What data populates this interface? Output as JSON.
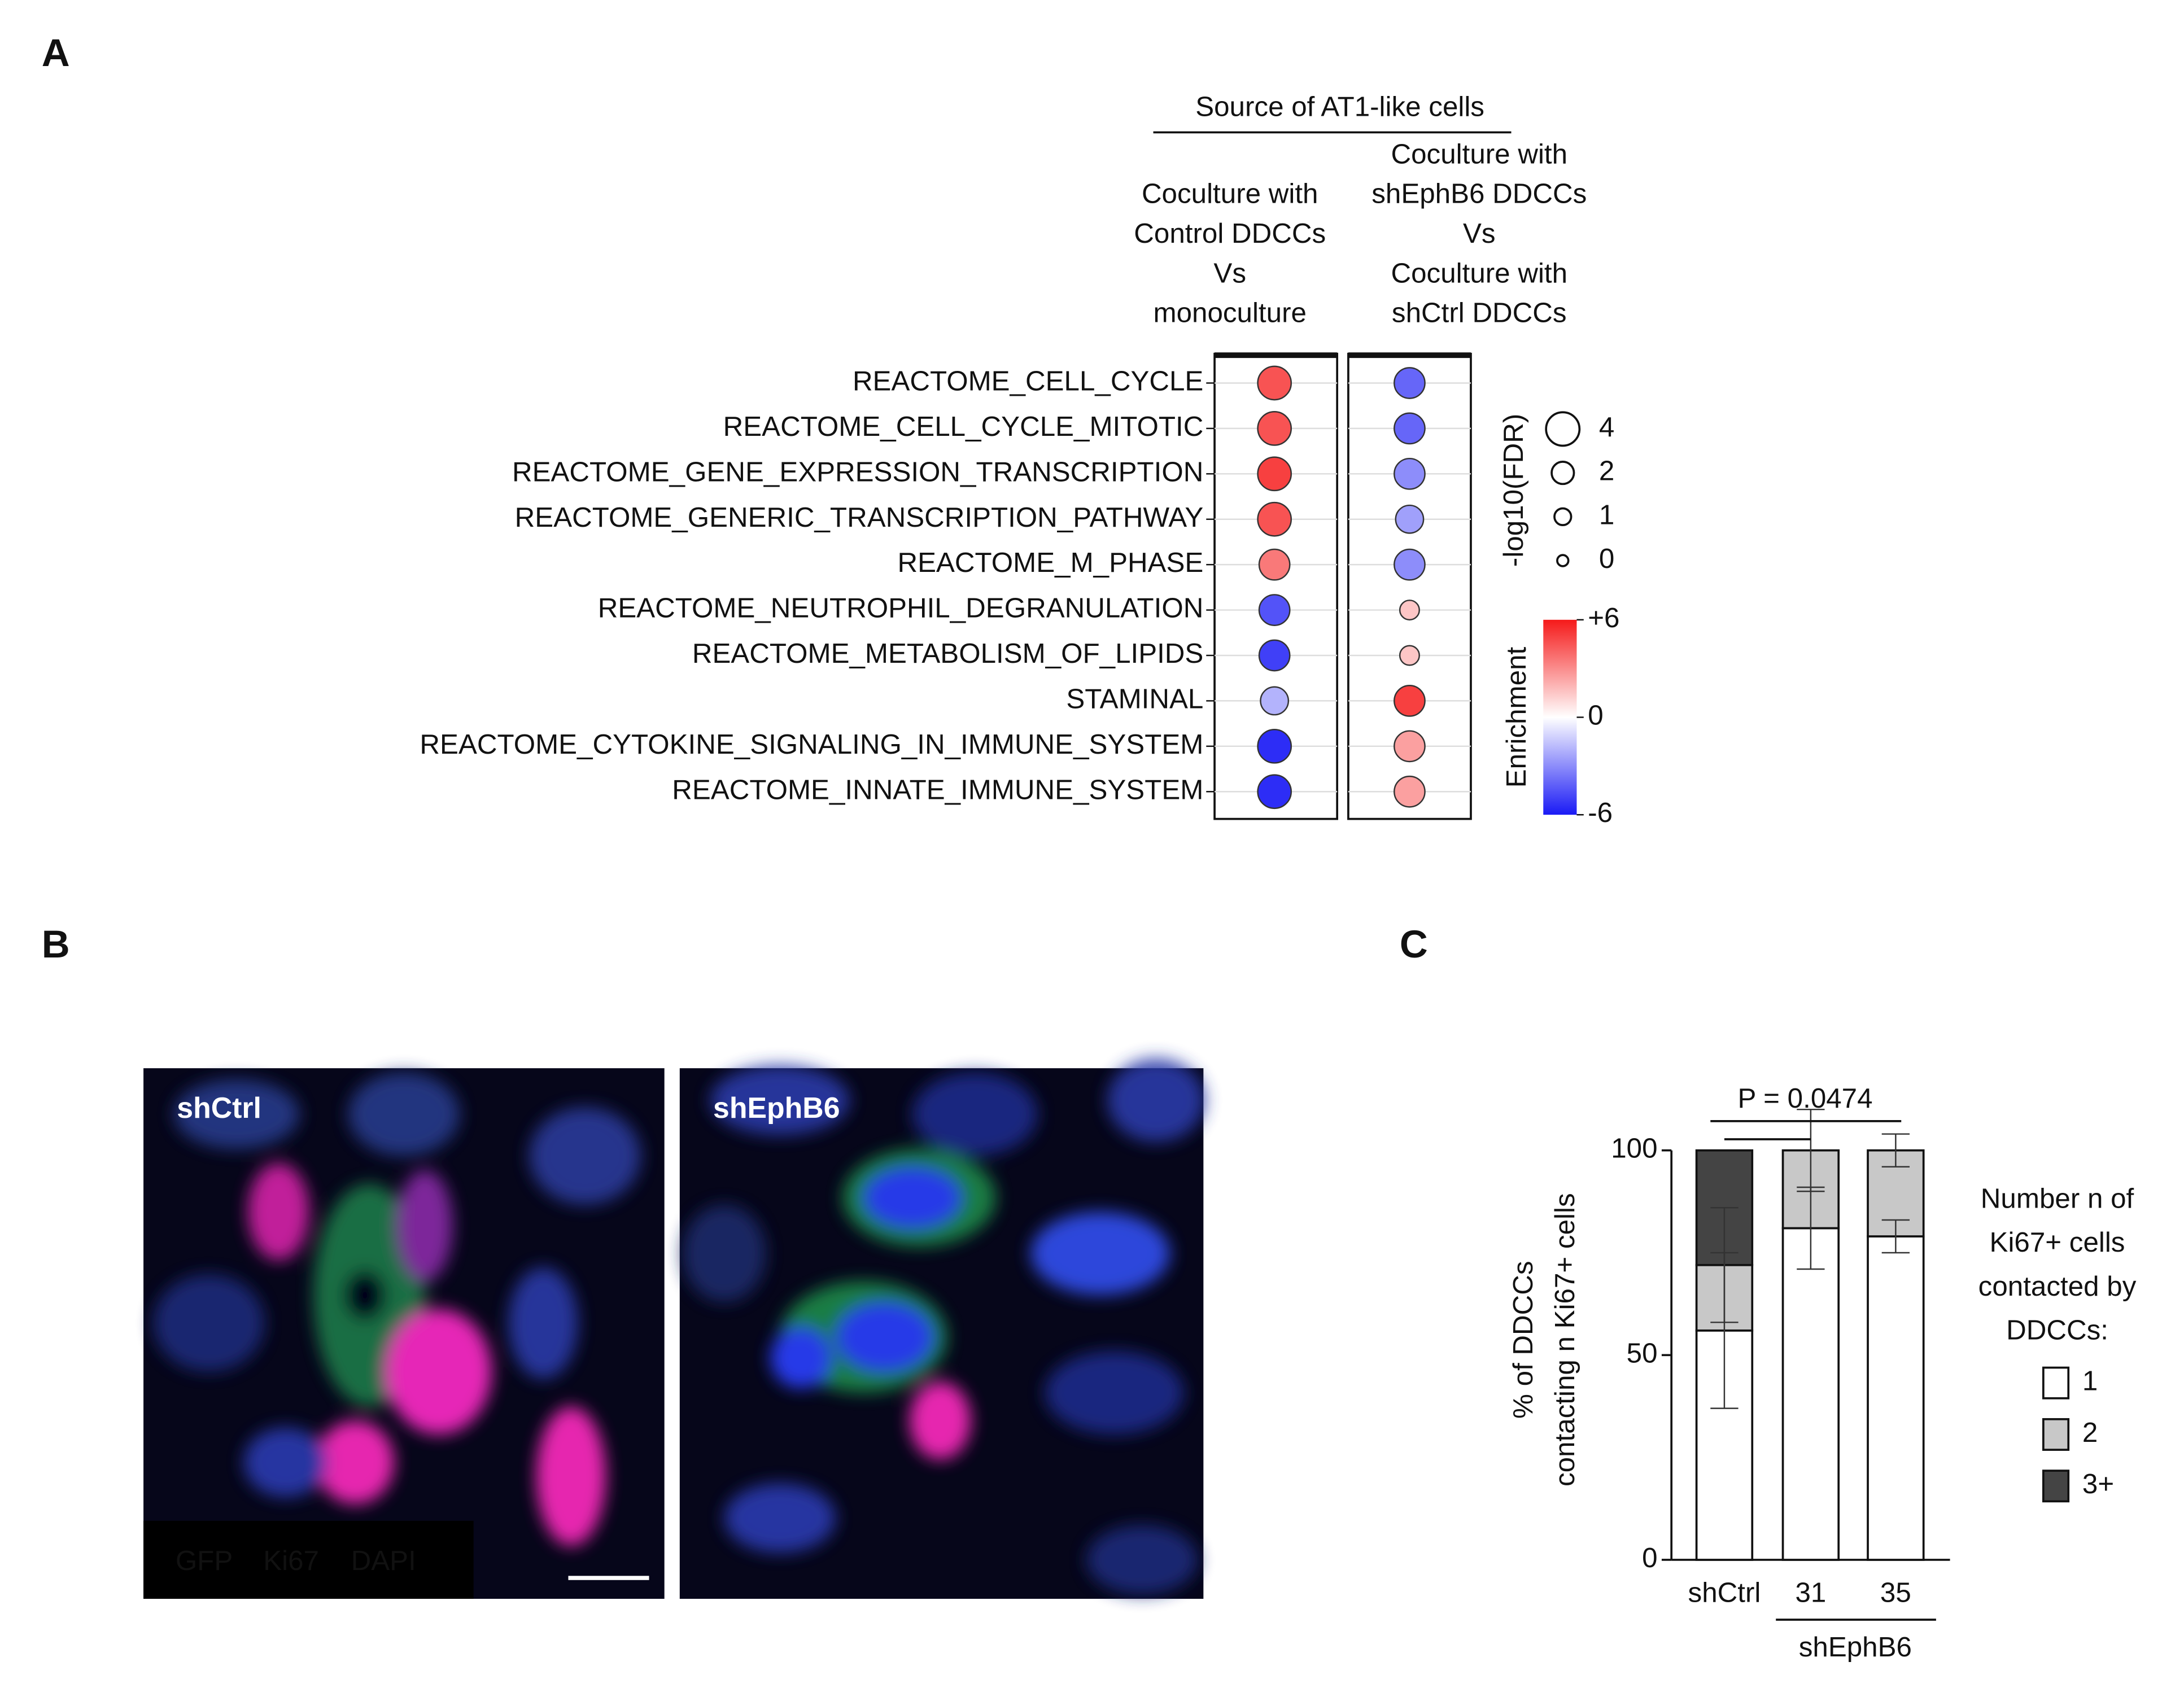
{
  "panel_labels": [
    "A",
    "B",
    "C"
  ],
  "images": {
    "panels": [
      {
        "label": "shCtrl"
      },
      {
        "label": "shEphB6"
      }
    ],
    "stain_legend": [
      {
        "text": "GFP",
        "color": "#2ec27e"
      },
      {
        "text": "Ki67",
        "color": "#ff2fc0"
      },
      {
        "text": "DAPI",
        "color": "#3b5bd6"
      }
    ]
  },
  "chart_data": [
    {
      "type": "bubble",
      "title": "Source of AT1-like cells",
      "categories": [
        "REACTOME_CELL_CYCLE",
        "REACTOME_CELL_CYCLE_MITOTIC",
        "REACTOME_GENE_EXPRESSION_TRANSCRIPTION",
        "REACTOME_GENERIC_TRANSCRIPTION_PATHWAY",
        "REACTOME_M_PHASE",
        "REACTOME_NEUTROPHIL_DEGRANULATION",
        "REACTOME_METABOLISM_OF_LIPIDS",
        "STAMINAL",
        "REACTOME_CYTOKINE_SIGNALING_IN_IMMUNE_SYSTEM",
        "REACTOME_INNATE_IMMUNE_SYSTEM"
      ],
      "series": [
        {
          "name": [
            "Coculture with",
            "Control DDCCs",
            "Vs",
            "monoculture"
          ],
          "enrichment": [
            4.5,
            4.5,
            5,
            4.5,
            3.5,
            -4.5,
            -5,
            -2,
            -5.5,
            -5.5
          ],
          "neg_log10_fdr": [
            4,
            4,
            4,
            4,
            3.5,
            3.5,
            3.5,
            3,
            4,
            4
          ]
        },
        {
          "name": [
            "Coculture with",
            "shEphB6 DDCCs",
            "Vs",
            "Coculture with",
            "shCtrl DDCCs"
          ],
          "enrichment": [
            -4,
            -4,
            -3,
            -2.5,
            -3,
            1.5,
            1.5,
            5,
            2.5,
            2.5
          ],
          "neg_log10_fdr": [
            3.5,
            3.5,
            3.5,
            3,
            3.5,
            1.5,
            1.5,
            3.5,
            3.5,
            3.5
          ]
        }
      ],
      "size_label": "-log10(FDR)",
      "sizeticks": [
        4,
        2,
        1,
        0
      ],
      "color_label": "Enrichment",
      "colorlim": [
        -6,
        6
      ],
      "colorticks": [
        {
          "value": 6,
          "label": "+6"
        },
        0,
        -6
      ],
      "colors": {
        "low": "#1a1af5",
        "mid": "#ffffff",
        "high": "#f51a1a"
      }
    },
    {
      "type": "stacked_bar",
      "categories": [
        "shCtrl",
        "31",
        "35"
      ],
      "group_label": "shEphB6",
      "ylabel": [
        "% of DDCCs",
        "contacting n Ki67+ cells"
      ],
      "ylim": [
        0,
        100
      ],
      "yticks": [
        0,
        50,
        100
      ],
      "series": [
        {
          "name": "1",
          "color": "#ffffff",
          "values": [
            56,
            81,
            79
          ],
          "errors": [
            19,
            10,
            4
          ]
        },
        {
          "name": "2",
          "color": "#c8c8c8",
          "values": [
            16,
            19,
            21
          ],
          "errors": [
            14,
            10,
            4
          ]
        },
        {
          "name": "3+",
          "color": "#444444",
          "values": [
            28,
            0,
            0
          ]
        }
      ],
      "legend_title": [
        "Number n of",
        "Ki67+ cells",
        "contacted by",
        "DDCCs:"
      ],
      "annotation": "P = 0.0474"
    }
  ]
}
